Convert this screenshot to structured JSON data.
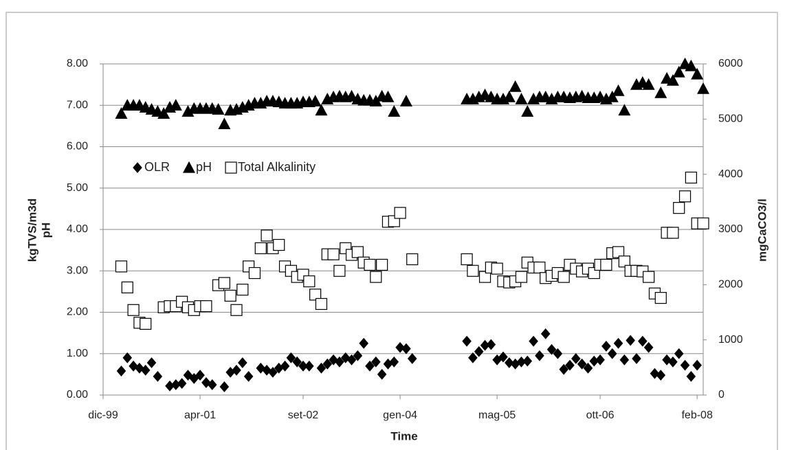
{
  "chart_data": {
    "type": "scatter",
    "x_label": "Time",
    "y_label": [
      "kgTVS/m3d",
      "pH"
    ],
    "y2_label": "mgCaCO3/l",
    "legend": "upper left",
    "grid": true,
    "xlim": [
      "1999-12",
      "2008-03"
    ],
    "xticks": [
      {
        "value": "1999-12",
        "label": "dic-99"
      },
      {
        "value": "2001-04",
        "label": "apr-01"
      },
      {
        "value": "2002-09",
        "label": "set-02"
      },
      {
        "value": "2004-01",
        "label": "gen-04"
      },
      {
        "value": "2005-05",
        "label": "mag-05"
      },
      {
        "value": "2006-10",
        "label": "ott-06"
      },
      {
        "value": "2008-02",
        "label": "feb-08"
      }
    ],
    "ylim": [
      0,
      8
    ],
    "yticks": [
      {
        "value": 0,
        "label": "0.00"
      },
      {
        "value": 1,
        "label": "1.00"
      },
      {
        "value": 2,
        "label": "2.00"
      },
      {
        "value": 3,
        "label": "3.00"
      },
      {
        "value": 4,
        "label": "4.00"
      },
      {
        "value": 5,
        "label": "5.00"
      },
      {
        "value": 6,
        "label": "6.00"
      },
      {
        "value": 7,
        "label": "7.00"
      },
      {
        "value": 8,
        "label": "8.00"
      }
    ],
    "y2lim": [
      0,
      6000
    ],
    "y2ticks": [
      0,
      1000,
      2000,
      3000,
      4000,
      5000,
      6000
    ],
    "x": [
      "2000-03",
      "2000-04",
      "2000-05",
      "2000-06",
      "2000-07",
      "2000-08",
      "2000-09",
      "2000-10",
      "2000-11",
      "2000-12",
      "2001-01",
      "2001-02",
      "2001-03",
      "2001-04",
      "2001-05",
      "2001-06",
      "2001-07",
      "2001-08",
      "2001-09",
      "2001-10",
      "2001-11",
      "2001-12",
      "2002-01",
      "2002-02",
      "2002-03",
      "2002-04",
      "2002-05",
      "2002-06",
      "2002-07",
      "2002-08",
      "2002-09",
      "2002-10",
      "2002-11",
      "2002-12",
      "2003-01",
      "2003-02",
      "2003-03",
      "2003-04",
      "2003-05",
      "2003-06",
      "2003-07",
      "2003-08",
      "2003-09",
      "2003-10",
      "2003-11",
      "2003-12",
      "2004-01",
      "2004-02",
      "2004-03",
      "2004-12",
      "2005-01",
      "2005-02",
      "2005-03",
      "2005-04",
      "2005-05",
      "2005-06",
      "2005-07",
      "2005-08",
      "2005-09",
      "2005-10",
      "2005-11",
      "2005-12",
      "2006-01",
      "2006-02",
      "2006-03",
      "2006-04",
      "2006-05",
      "2006-06",
      "2006-07",
      "2006-08",
      "2006-09",
      "2006-10",
      "2006-11",
      "2006-12",
      "2007-01",
      "2007-02",
      "2007-03",
      "2007-04",
      "2007-05",
      "2007-06",
      "2007-07",
      "2007-08",
      "2007-09",
      "2007-10",
      "2007-11",
      "2007-12",
      "2008-01",
      "2008-02",
      "2008-03"
    ],
    "series": [
      {
        "name": "OLR",
        "color": "#000000",
        "marker": "diamond",
        "values": [
          0.58,
          0.9,
          0.7,
          0.65,
          0.6,
          0.78,
          0.45,
          null,
          0.22,
          0.25,
          0.28,
          0.48,
          0.4,
          0.48,
          0.3,
          0.25,
          null,
          0.2,
          0.55,
          0.6,
          0.78,
          0.45,
          null,
          0.65,
          0.6,
          0.55,
          0.65,
          0.7,
          0.9,
          0.8,
          0.7,
          0.7,
          null,
          0.65,
          0.75,
          0.85,
          0.8,
          0.9,
          0.85,
          0.95,
          1.25,
          0.7,
          0.8,
          0.5,
          0.75,
          0.8,
          1.15,
          1.12,
          0.88,
          1.3,
          0.9,
          1.05,
          1.2,
          1.22,
          0.85,
          0.92,
          0.78,
          0.75,
          0.8,
          0.82,
          1.3,
          0.95,
          1.48,
          1.1,
          1.0,
          0.62,
          0.72,
          0.88,
          0.75,
          0.65,
          0.82,
          0.85,
          1.18,
          1.0,
          1.25,
          0.85,
          1.32,
          0.88,
          1.3,
          1.15,
          0.52,
          0.48,
          0.85,
          0.8,
          1.0,
          0.72,
          0.45,
          0.72,
          null
        ]
      },
      {
        "name": "pH",
        "color": "#000000",
        "marker": "triangle",
        "values": [
          6.8,
          7.0,
          7.0,
          7.0,
          6.95,
          6.9,
          6.85,
          6.8,
          6.95,
          7.0,
          null,
          6.85,
          6.92,
          6.92,
          6.92,
          6.92,
          6.9,
          6.55,
          6.88,
          6.9,
          6.95,
          7.0,
          7.05,
          7.05,
          7.1,
          7.1,
          7.08,
          7.05,
          7.05,
          7.05,
          7.08,
          7.08,
          7.1,
          6.88,
          7.15,
          7.2,
          7.22,
          7.2,
          7.22,
          7.15,
          7.12,
          7.12,
          7.1,
          7.22,
          7.2,
          6.85,
          null,
          7.1,
          null,
          7.15,
          7.15,
          7.2,
          7.25,
          7.2,
          7.15,
          7.15,
          7.2,
          7.45,
          7.15,
          6.85,
          7.15,
          7.2,
          7.2,
          7.15,
          7.2,
          7.2,
          7.18,
          7.2,
          7.22,
          7.18,
          7.18,
          7.2,
          7.15,
          7.2,
          7.35,
          6.88,
          null,
          7.5,
          7.55,
          7.5,
          null,
          7.3,
          7.65,
          7.6,
          7.8,
          8.0,
          7.95,
          7.75,
          7.4
        ]
      },
      {
        "name": "Total Alkalinity",
        "color": "#ffffff",
        "marker": "square",
        "axis": "y2",
        "values": [
          2330,
          1950,
          1540,
          1310,
          1290,
          null,
          null,
          1590,
          1610,
          1610,
          1690,
          1590,
          1540,
          1610,
          1610,
          null,
          1990,
          2030,
          1800,
          1540,
          1910,
          2330,
          2210,
          2660,
          2890,
          2660,
          2720,
          2330,
          2250,
          2140,
          2180,
          2060,
          1820,
          1650,
          2550,
          2550,
          2250,
          2660,
          2540,
          2590,
          2400,
          2360,
          2140,
          2360,
          3140,
          3150,
          3300,
          null,
          2460,
          2460,
          2250,
          null,
          2140,
          2310,
          2290,
          2060,
          2040,
          2060,
          2140,
          2400,
          2310,
          2310,
          2120,
          2160,
          2210,
          2140,
          2360,
          2290,
          2240,
          2290,
          2210,
          2360,
          2360,
          2570,
          2590,
          2420,
          2250,
          2250,
          2240,
          2140,
          1840,
          1760,
          2940,
          2940,
          3390,
          3600,
          3940,
          3110,
          3110
        ]
      }
    ]
  }
}
